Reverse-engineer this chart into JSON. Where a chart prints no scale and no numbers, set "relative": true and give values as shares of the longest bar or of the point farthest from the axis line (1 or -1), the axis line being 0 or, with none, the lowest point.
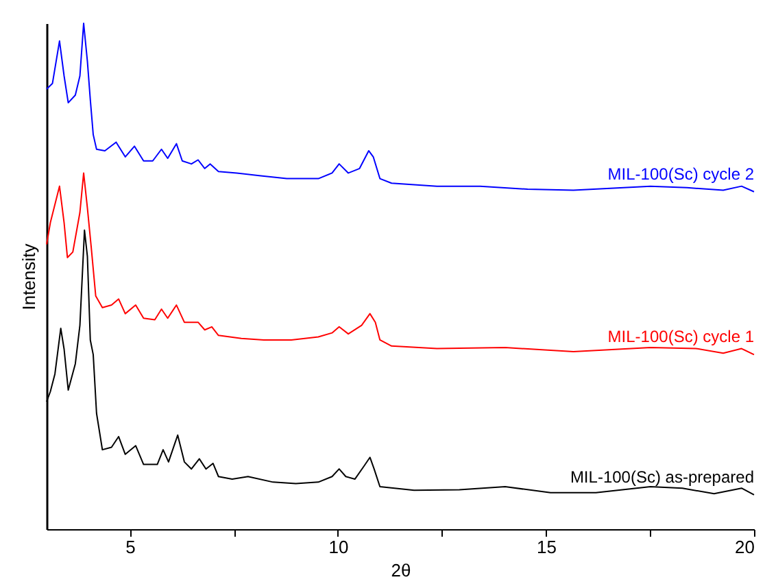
{
  "chart_data": {
    "type": "line",
    "relative": true,
    "xlabel": "2θ",
    "ylabel": "Intensity",
    "grid": false,
    "tick_labels": "x",
    "xlim": [
      3,
      20
    ],
    "xticks": [
      5,
      {
        "value": 7.5,
        "label": null
      },
      10,
      {
        "value": 12.5,
        "label": null
      },
      15,
      {
        "value": 17.5,
        "label": null
      },
      20
    ],
    "series": [
      {
        "name": "MIL-100(Sc) as-prepared",
        "color": "#000000",
        "x": [
          3.0,
          3.09,
          3.2,
          3.34,
          3.42,
          3.52,
          3.69,
          3.8,
          3.91,
          3.98,
          4.05,
          4.12,
          4.2,
          4.34,
          4.56,
          4.73,
          4.89,
          5.14,
          5.33,
          5.66,
          5.8,
          5.93,
          6.15,
          6.31,
          6.48,
          6.67,
          6.83,
          7.0,
          7.13,
          7.46,
          7.84,
          8.44,
          8.99,
          9.53,
          9.86,
          10.03,
          10.19,
          10.41,
          10.63,
          10.77,
          10.87,
          11.01,
          11.83,
          12.92,
          14.02,
          15.11,
          16.2,
          17.51,
          18.28,
          19.04,
          19.7,
          20.0
        ],
        "values": [
          0.252,
          0.272,
          0.307,
          0.397,
          0.356,
          0.275,
          0.327,
          0.403,
          0.591,
          0.539,
          0.374,
          0.345,
          0.229,
          0.157,
          0.162,
          0.183,
          0.148,
          0.165,
          0.128,
          0.128,
          0.157,
          0.133,
          0.186,
          0.133,
          0.119,
          0.139,
          0.119,
          0.13,
          0.104,
          0.099,
          0.104,
          0.093,
          0.09,
          0.093,
          0.104,
          0.119,
          0.104,
          0.099,
          0.125,
          0.142,
          0.119,
          0.084,
          0.077,
          0.078,
          0.084,
          0.072,
          0.072,
          0.084,
          0.081,
          0.07,
          0.081,
          0.068
        ]
      },
      {
        "name": "MIL-100(Sc) cycle 1",
        "color": "#ff0000",
        "x": [
          3.0,
          3.09,
          3.31,
          3.42,
          3.5,
          3.63,
          3.8,
          3.89,
          3.98,
          4.07,
          4.18,
          4.34,
          4.56,
          4.73,
          4.89,
          5.14,
          5.33,
          5.6,
          5.76,
          5.91,
          6.12,
          6.31,
          6.64,
          6.8,
          6.97,
          7.13,
          7.68,
          8.22,
          8.88,
          9.53,
          9.86,
          10.03,
          10.25,
          10.57,
          10.77,
          10.9,
          11.01,
          11.29,
          12.38,
          14.02,
          15.66,
          17.51,
          18.61,
          19.26,
          19.7,
          20.0
        ],
        "values": [
          0.563,
          0.606,
          0.678,
          0.606,
          0.537,
          0.548,
          0.626,
          0.704,
          0.635,
          0.559,
          0.461,
          0.438,
          0.443,
          0.455,
          0.426,
          0.443,
          0.417,
          0.414,
          0.435,
          0.417,
          0.443,
          0.409,
          0.409,
          0.394,
          0.4,
          0.383,
          0.377,
          0.374,
          0.374,
          0.38,
          0.388,
          0.4,
          0.386,
          0.403,
          0.426,
          0.409,
          0.374,
          0.362,
          0.357,
          0.359,
          0.351,
          0.359,
          0.357,
          0.348,
          0.357,
          0.345
        ]
      },
      {
        "name": "MIL-100(Sc) cycle 2",
        "color": "#0000ff",
        "x": [
          3.0,
          3.14,
          3.31,
          3.42,
          3.52,
          3.69,
          3.8,
          3.89,
          3.98,
          4.05,
          4.12,
          4.2,
          4.4,
          4.67,
          4.89,
          5.11,
          5.33,
          5.55,
          5.76,
          5.91,
          6.12,
          6.26,
          6.48,
          6.64,
          6.8,
          6.93,
          7.13,
          7.57,
          8.11,
          8.77,
          9.53,
          9.86,
          10.03,
          10.25,
          10.52,
          10.74,
          10.85,
          11.01,
          11.29,
          12.38,
          13.42,
          14.56,
          15.66,
          17.51,
          18.39,
          19.26,
          19.7,
          20.0
        ],
        "values": [
          0.87,
          0.881,
          0.965,
          0.896,
          0.843,
          0.858,
          0.896,
          1.0,
          0.925,
          0.849,
          0.78,
          0.751,
          0.748,
          0.765,
          0.736,
          0.757,
          0.728,
          0.728,
          0.751,
          0.733,
          0.762,
          0.728,
          0.722,
          0.73,
          0.713,
          0.722,
          0.707,
          0.704,
          0.699,
          0.693,
          0.693,
          0.704,
          0.722,
          0.704,
          0.713,
          0.748,
          0.736,
          0.693,
          0.684,
          0.678,
          0.678,
          0.672,
          0.67,
          0.678,
          0.675,
          0.67,
          0.678,
          0.667
        ]
      }
    ]
  }
}
